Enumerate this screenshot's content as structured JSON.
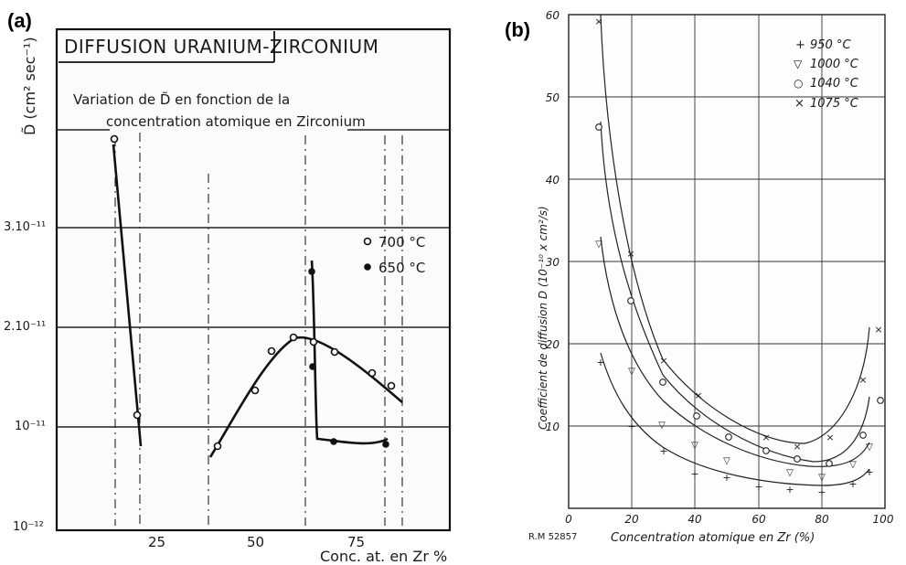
{
  "panel_a": {
    "tag": "(a)",
    "title": "DIFFUSION URANIUM-ZIRCONIUM",
    "subtitle_line1": "Variation de D̃ en fonction de la",
    "subtitle_line2": "concentration atomique en Zirconium",
    "ylabel": "D̃ (cm² sec⁻¹)",
    "xlabel": "Conc. at. en Zr %",
    "yticks": [
      "3.10⁻¹¹",
      "2.10⁻¹¹",
      "10⁻¹¹",
      "10⁻¹²"
    ],
    "xticks": [
      "25",
      "50",
      "75"
    ],
    "legend": [
      {
        "marker": "open",
        "label": "700 °C"
      },
      {
        "marker": "filled",
        "label": "650 °C"
      }
    ]
  },
  "panel_b": {
    "tag": "(b)",
    "ylabel": "Coefficient de diffusion D (10⁻¹⁰ x cm²/s)",
    "xlabel": "Concentration atomique en Zr (%)",
    "corner_note": "R.M 52857",
    "xticks": [
      "0",
      "20",
      "40",
      "60",
      "80",
      "100"
    ],
    "yticks": [
      "10",
      "20",
      "30",
      "40",
      "50",
      "60"
    ],
    "legend": [
      {
        "marker": "+",
        "label": "950 °C"
      },
      {
        "marker": "▽",
        "label": "1000 °C"
      },
      {
        "marker": "○",
        "label": "1040 °C"
      },
      {
        "marker": "×",
        "label": "1075 °C"
      }
    ]
  },
  "chart_data": [
    {
      "type": "line",
      "title": "DIFFUSION URANIUM-ZIRCONIUM",
      "subtitle": "Variation de D̃ en fonction de la concentration atomique en Zirconium",
      "xlabel": "Conc. at. en Zr %",
      "ylabel": "D̃ (cm² sec⁻¹)",
      "xlim": [
        0,
        90
      ],
      "ylim": [
        0,
        4e-11
      ],
      "grid": true,
      "legend_position": "right",
      "series": [
        {
          "name": "700 °C",
          "marker": "open-circle",
          "x": [
            14,
            20,
            40,
            50,
            54,
            60,
            65,
            70,
            78,
            83
          ],
          "y": [
            3.9e-11,
            1.1e-11,
            8.5e-12,
            1.4e-11,
            1.9e-11,
            2.05e-11,
            2e-11,
            1.9e-11,
            1.7e-11,
            1.55e-11
          ]
        },
        {
          "name": "650 °C",
          "marker": "filled-circle",
          "x": [
            64,
            64.5,
            70,
            78,
            82
          ],
          "y": [
            2.85e-11,
            1.75e-11,
            9e-12,
            8.5e-12,
            9e-12
          ]
        }
      ]
    },
    {
      "type": "line",
      "xlabel": "Concentration atomique en Zr (%)",
      "ylabel": "Coefficient de diffusion D (10⁻¹⁰ x cm²/s)",
      "xlim": [
        0,
        100
      ],
      "ylim": [
        0,
        60
      ],
      "grid": true,
      "legend_position": "top-right",
      "series": [
        {
          "name": "950 °C",
          "marker": "+",
          "x": [
            10,
            20,
            30,
            40,
            50,
            60,
            70,
            80,
            90,
            95
          ],
          "y": [
            18,
            10,
            7,
            5,
            4,
            3.5,
            3,
            2.8,
            3.5,
            5
          ]
        },
        {
          "name": "1000 °C",
          "marker": "triangle-down",
          "x": [
            10,
            20,
            30,
            40,
            50,
            70,
            80,
            90,
            95
          ],
          "y": [
            33,
            17,
            10.5,
            8,
            6,
            5,
            4.5,
            6,
            8
          ]
        },
        {
          "name": "1040 °C",
          "marker": "circle",
          "x": [
            10,
            20,
            30,
            40,
            50,
            60,
            70,
            80,
            90,
            95
          ],
          "y": [
            47,
            26,
            15.5,
            11.5,
            9,
            7.5,
            6.5,
            6,
            9,
            13.5
          ]
        },
        {
          "name": "1075 °C",
          "marker": "x",
          "x": [
            10,
            20,
            30,
            40,
            60,
            70,
            80,
            90,
            95
          ],
          "y": [
            60,
            31,
            18,
            14,
            9,
            8,
            9,
            16,
            22
          ]
        }
      ]
    }
  ]
}
